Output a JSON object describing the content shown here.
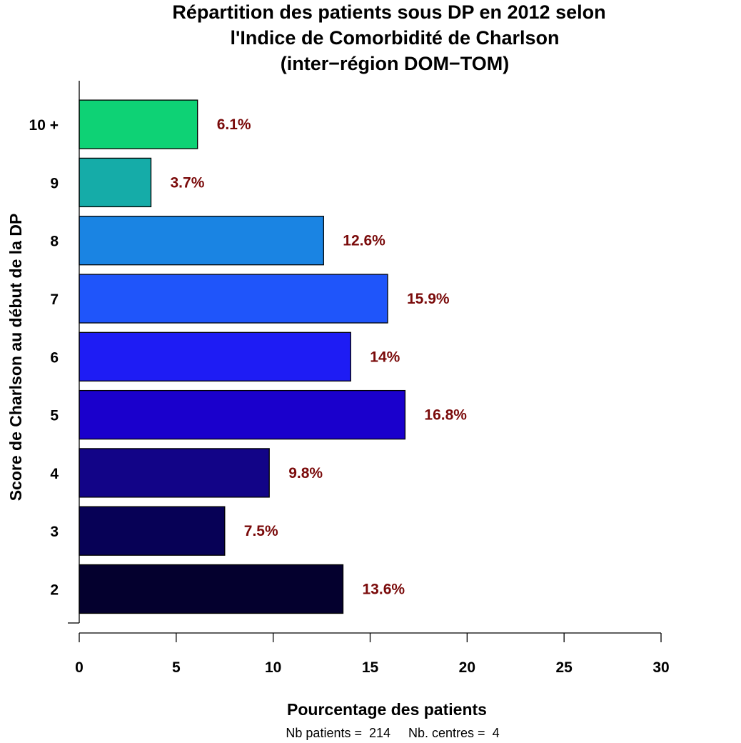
{
  "chart_data": {
    "type": "bar",
    "orientation": "horizontal",
    "title_lines": [
      "Répartition des patients sous DP en 2012 selon",
      "l'Indice de Comorbidité de Charlson",
      "(inter−région DOM−TOM)"
    ],
    "xlabel": "Pourcentage des patients",
    "ylabel": "Score de Charlson au début de la DP",
    "xlim": [
      0,
      30
    ],
    "x_ticks": [
      "0",
      "5",
      "10",
      "15",
      "20",
      "25",
      "30"
    ],
    "grid": false,
    "categories": [
      "2",
      "3",
      "4",
      "5",
      "6",
      "7",
      "8",
      "9",
      "10 +"
    ],
    "values": [
      13.6,
      7.5,
      9.8,
      16.8,
      14.0,
      15.9,
      12.6,
      3.7,
      6.1
    ],
    "value_labels": [
      "13.6%",
      "7.5%",
      "9.8%",
      "16.8%",
      "14%",
      "15.9%",
      "12.6%",
      "3.7%",
      "6.1%"
    ],
    "bar_colors": [
      "#04002e",
      "#070156",
      "#120487",
      "#1a00cc",
      "#1e1cf4",
      "#1f55fa",
      "#1a84e3",
      "#15aca8",
      "#0ed275"
    ],
    "label_color": "#7a0a0a",
    "footnote": "Nb patients =  214     Nb. centres =  4"
  }
}
